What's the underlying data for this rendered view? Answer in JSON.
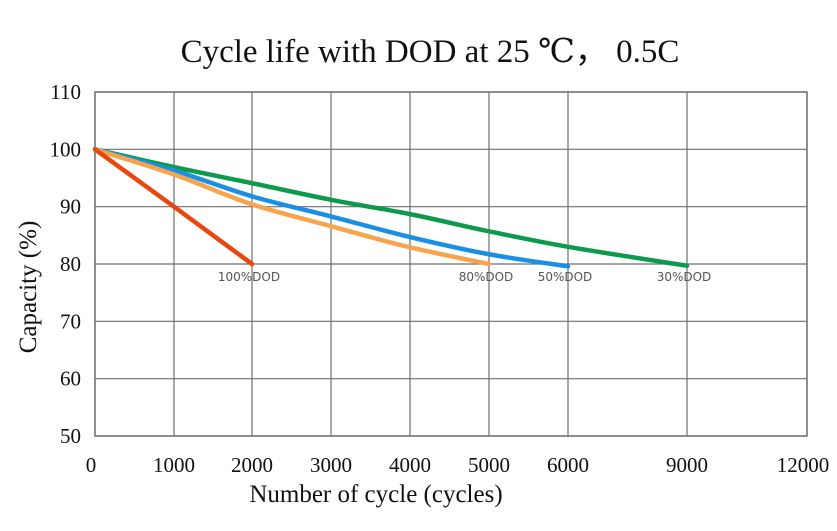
{
  "chart_data": {
    "type": "line",
    "title": "Cycle life with  DOD  at 25 ℃， 0.5C",
    "xlabel": "Number of cycle (cycles)",
    "ylabel": "Capacity (%)",
    "xticks": [
      0,
      1000,
      2000,
      3000,
      4000,
      5000,
      6000,
      9000,
      12000
    ],
    "xtick_labels": [
      "0",
      "1000",
      "2000",
      "3000",
      "4000",
      "5000",
      "6000",
      "9000",
      "12000"
    ],
    "yticks": [
      50,
      60,
      70,
      80,
      90,
      100,
      110
    ],
    "ytick_labels": [
      "50",
      "60",
      "70",
      "80",
      "90",
      "100",
      "110"
    ],
    "ylim": [
      50,
      110
    ],
    "xlim": [
      0,
      12000
    ],
    "grid": true,
    "legend": "none (inline end labels)",
    "series": [
      {
        "name": "30%DOD",
        "color": "#0d9a4c",
        "x": [
          0,
          1000,
          2000,
          3000,
          4000,
          5000,
          6000,
          9000
        ],
        "y": [
          100,
          96.9,
          94.1,
          91.2,
          88.7,
          85.7,
          83.0,
          79.7
        ]
      },
      {
        "name": "50%DOD",
        "color": "#1a8fe3",
        "x": [
          0,
          1000,
          2000,
          3000,
          4000,
          5000,
          6000
        ],
        "y": [
          100,
          96.3,
          91.8,
          88.3,
          84.7,
          81.7,
          79.6
        ]
      },
      {
        "name": "80%DOD",
        "color": "#f7a44c",
        "x": [
          0,
          1000,
          2000,
          3000,
          4000,
          5000
        ],
        "y": [
          100,
          95.6,
          90.4,
          86.6,
          82.9,
          80.0
        ]
      },
      {
        "name": "100%DOD",
        "color": "#e8480f",
        "x": [
          0,
          1000,
          2000
        ],
        "y": [
          100,
          90,
          80
        ]
      }
    ],
    "annotations": [
      {
        "text": "100%DOD",
        "x": 2000,
        "y": 80
      },
      {
        "text": "80%DOD",
        "x": 5000,
        "y": 80
      },
      {
        "text": "50%DOD",
        "x": 6000,
        "y": 80
      },
      {
        "text": "30%DOD",
        "x": 9000,
        "y": 80
      }
    ]
  }
}
